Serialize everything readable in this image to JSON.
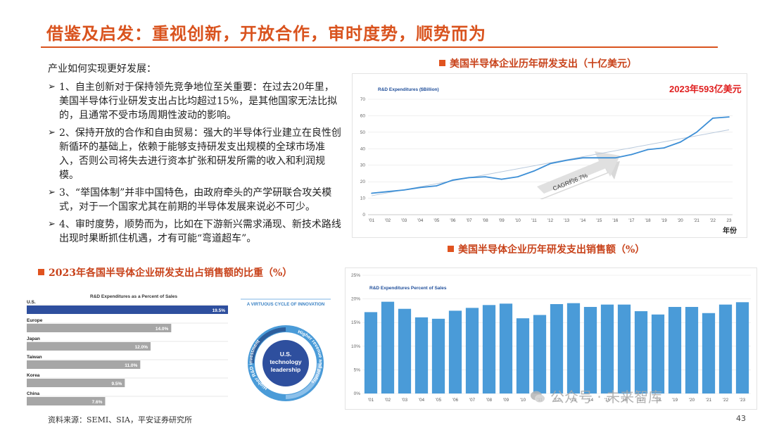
{
  "slide": {
    "title": "借鉴及启发：重视创新，开放合作，审时度势，顺势而为",
    "intro": "产业如何实现更好发展：",
    "points": [
      "1、自主创新对于保持领先竞争地位至关重要：在过去20年里，美国半导体行业研发支出占比均超过15%，是其他国家无法比拟的，且通常不受市场周期性波动的影响。",
      "2、保持开放的合作和自由贸易：强大的半导体行业建立在良性创新循环的基础上，依赖于能够支持研发支出规模的全球市场准入，否则公司将失去进行资本扩张和研发所需的收入和利润规模。",
      "3、“举国体制”并非中国特色，由政府牵头的产学研联合攻关模式，对于一个国家尤其在前期的半导体发展来说必不可少。",
      "4、审时度势，顺势而为，比如在下游新兴需求涌现、新技术路线出现时果断抓住机遇，才有可能“弯道超车”。"
    ],
    "source": "资料来源：SEMI、SIA，平安证券研究所",
    "page": "43",
    "watermark": "公众号 · 未来智库"
  },
  "sections": {
    "rd_spend": "美国半导体企业历年研发支出（十亿美元）",
    "rd_pct": "美国半导体企业历年研发支出销售额（%）",
    "country": "2023年各国半导体企业研发支出占销售额的比重（%）"
  },
  "colors": {
    "accent": "#d9531e",
    "line": "#3d8fd6",
    "bar": "#4a9bd8",
    "us_bar": "#2e4f9e",
    "gray_bar": "#a6a6a6"
  },
  "chart_data": [
    {
      "type": "line",
      "title": "R&D Expenditures ($Billion)",
      "x": [
        "'01",
        "'02",
        "'03",
        "'04",
        "'05",
        "'06",
        "'07",
        "'08",
        "'09",
        "'10",
        "'11",
        "'12",
        "'13",
        "'14",
        "'15",
        "'16",
        "'17",
        "'18",
        "'19",
        "'20",
        "'21",
        "'22",
        "23"
      ],
      "series": [
        {
          "values": [
            13,
            14,
            15,
            16.5,
            17.5,
            21,
            22.5,
            23,
            21.5,
            23,
            26.5,
            31,
            33,
            34.5,
            34.5,
            34.5,
            36.5,
            39.5,
            40.5,
            44,
            50,
            58.5,
            59.3
          ]
        }
      ],
      "trend": [
        11.5,
        51.5
      ],
      "ylim": [
        0,
        70
      ],
      "yticks": [
        "0",
        "10",
        "20",
        "30",
        "40",
        "50",
        "60",
        "70"
      ],
      "xlabel": "年份",
      "annotation": "2023年593亿美元",
      "cagr_label": "CAGR约6.7%"
    },
    {
      "type": "bar",
      "title": "R&D Expenditures Percent of Sales",
      "categories": [
        "'01",
        "'02",
        "'03",
        "'04",
        "'05",
        "'06",
        "'07",
        "'08",
        "'09",
        "'10",
        "'11",
        "'12",
        "'13",
        "'14",
        "'15",
        "'16",
        "'17",
        "'18",
        "'19",
        "'20",
        "'21",
        "'22",
        "'23"
      ],
      "values": [
        17.2,
        19.4,
        17.9,
        16.1,
        15.8,
        17.5,
        18.1,
        18.7,
        19.0,
        15.9,
        16.6,
        18.9,
        19.1,
        18.3,
        18.8,
        18.8,
        17.4,
        16.7,
        18.3,
        18.3,
        17.0,
        18.8,
        19.3
      ],
      "ylim": [
        0,
        25
      ],
      "yticks": [
        "0%",
        "5%",
        "10%",
        "15%",
        "20%",
        "25%"
      ]
    },
    {
      "type": "bar",
      "orientation": "horizontal",
      "title": "R&D Expenditures as a Percent of Sales",
      "categories": [
        "U.S.",
        "Europe",
        "Japan",
        "Taiwan",
        "Korea",
        "China"
      ],
      "values": [
        19.5,
        14.0,
        12.0,
        11.0,
        9.5,
        7.6
      ],
      "value_labels": [
        "19.5%",
        "14.0%",
        "12.0%",
        "11.0%",
        "9.5%",
        "7.6%"
      ],
      "xlim": [
        0,
        19.5
      ]
    }
  ],
  "cycle": {
    "title": "A VIRTUOUS CYCLE OF INNOVATION",
    "center": [
      "U.S.",
      "technology",
      "leadership"
    ],
    "left_arc": "Higher R&D investment",
    "right_arc": "Higher revenue and profits"
  }
}
